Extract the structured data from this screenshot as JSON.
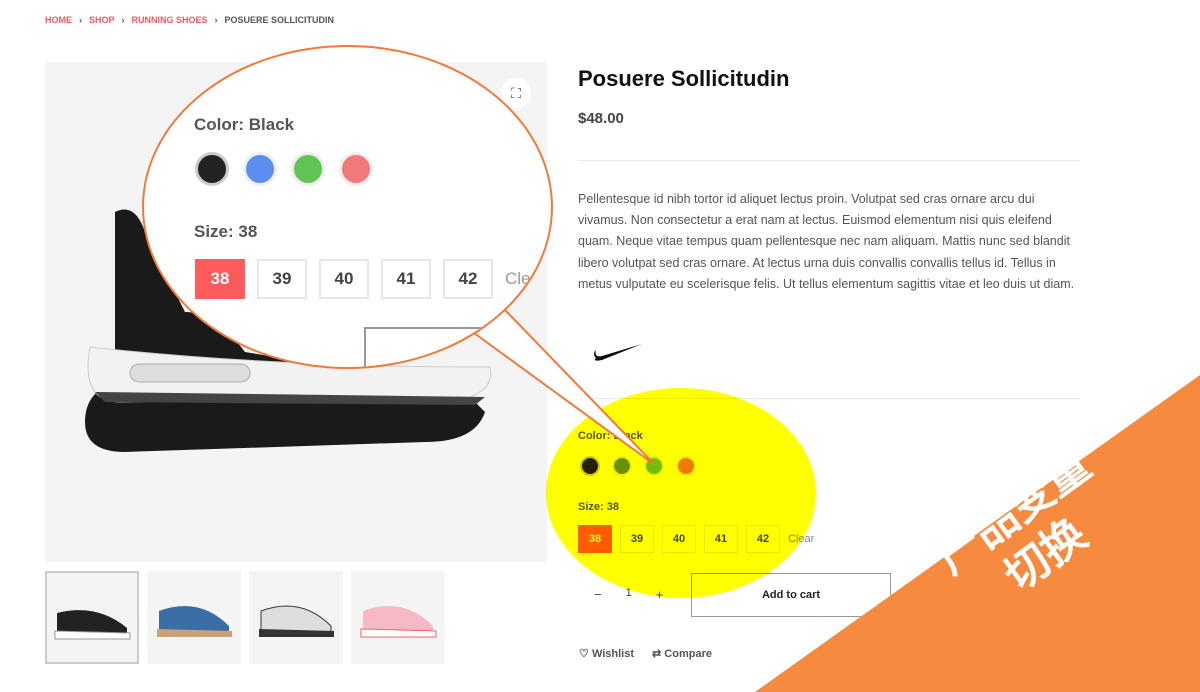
{
  "breadcrumb": [
    "HOME",
    "SHOP",
    "RUNNING SHOES",
    "POSUERE SOLLICITUDIN"
  ],
  "product": {
    "title": "Posuere Sollicitudin",
    "price": "$48.00",
    "description": "Pellentesque id nibh tortor id aliquet lectus proin. Volutpat sed cras ornare arcu dui vivamus. Non consectetur a erat nam at lectus. Euismod elementum nisi quis eleifend quam. Neque vitae tempus quam pellentesque nec nam aliquam. Mattis nunc sed blandit libero volutpat sed cras ornare. At lectus urna duis convallis convallis tellus id. Tellus in metus vulputate eu scelerisque felis. Ut tellus elementum sagittis vitae et leo duis ut diam.",
    "brand": "nike-logo",
    "color_label": "Color: Black",
    "colors": [
      "#222222",
      "#6a8f1a",
      "#6cc23a",
      "#f07a1a"
    ],
    "zoom_colors": [
      "#222222",
      "#5b8def",
      "#62c454",
      "#f07a7a"
    ],
    "size_label": "Size: 38",
    "sizes": [
      "38",
      "39",
      "40",
      "41",
      "42"
    ],
    "selected_size": "38",
    "clear": "Clear",
    "quantity": "1",
    "qty_minus": "−",
    "qty_plus": "+",
    "add_to_cart": "Add to cart",
    "wishlist": "Wishlist",
    "compare": "Compare"
  },
  "promo": {
    "line1": "产品变量",
    "line2": "切换"
  },
  "colors": {
    "accent": "#f0595f",
    "callout": "#f07a3a",
    "promo_bg": "#f68b3f",
    "highlight": "#ffff00"
  }
}
